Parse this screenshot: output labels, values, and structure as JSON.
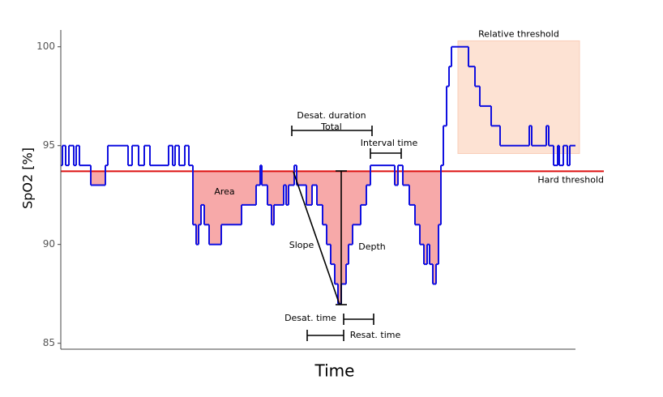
{
  "chart_data": {
    "type": "line",
    "x_label": "Time",
    "y_label": "SpO2 [%]",
    "xlim": [
      0,
      640
    ],
    "ylim": [
      84.7,
      100.85
    ],
    "yticks": [
      85,
      90,
      95,
      100
    ],
    "series": [
      {
        "name": "SpO2",
        "color": "#1010e0",
        "x": [
          0,
          2,
          6,
          10,
          16,
          19,
          23,
          37,
          55,
          58,
          83,
          88,
          96,
          103,
          110,
          133,
          138,
          141,
          146,
          153,
          158,
          163,
          167,
          170,
          173,
          177,
          183,
          198,
          223,
          241,
          246,
          248,
          255,
          260,
          263,
          275,
          278,
          281,
          288,
          291,
          303,
          310,
          316,
          323,
          328,
          333,
          338,
          342,
          346,
          352,
          355,
          360,
          370,
          377,
          382,
          412,
          416,
          422,
          430,
          437,
          443,
          448,
          452,
          455,
          459,
          463,
          466,
          469,
          472,
          476,
          479,
          482,
          497,
          503,
          511,
          517,
          531,
          542,
          578,
          581,
          599,
          602,
          608,
          613,
          615,
          620,
          625,
          628,
          635
        ],
        "values": [
          94,
          95,
          94,
          95,
          94,
          95,
          94,
          93,
          94,
          95,
          94,
          95,
          94,
          95,
          94,
          95,
          94,
          95,
          94,
          95,
          94,
          91,
          90,
          91,
          92,
          91,
          90,
          91,
          92,
          93,
          94,
          93,
          92,
          91,
          92,
          93,
          92,
          93,
          94,
          93,
          92,
          93,
          92,
          91,
          90,
          89,
          88,
          87,
          88,
          89,
          90,
          91,
          92,
          93,
          94,
          93,
          94,
          93,
          92,
          91,
          90,
          89,
          90,
          89,
          88,
          89,
          91,
          94,
          96,
          98,
          99,
          100,
          100,
          99,
          98,
          97,
          96,
          95,
          96,
          95,
          96,
          95,
          94,
          95,
          94,
          95,
          94,
          95,
          95
        ]
      }
    ],
    "hard_threshold": {
      "value": 93.7,
      "label": "Hard threshold",
      "color": "#dd1111"
    },
    "relative_threshold": {
      "label": "Relative threshold",
      "color": "#e07b1a",
      "xlim": [
        490,
        640
      ],
      "ylim": [
        94.6,
        100.3
      ]
    },
    "annotations": {
      "area": "Area",
      "slope": "Slope",
      "depth": "Depth",
      "desat_duration": "Desat. duration",
      "total": "Total",
      "interval_time": "Interval time",
      "desat_time": "Desat. time",
      "resat_time": "Resat. time"
    }
  }
}
